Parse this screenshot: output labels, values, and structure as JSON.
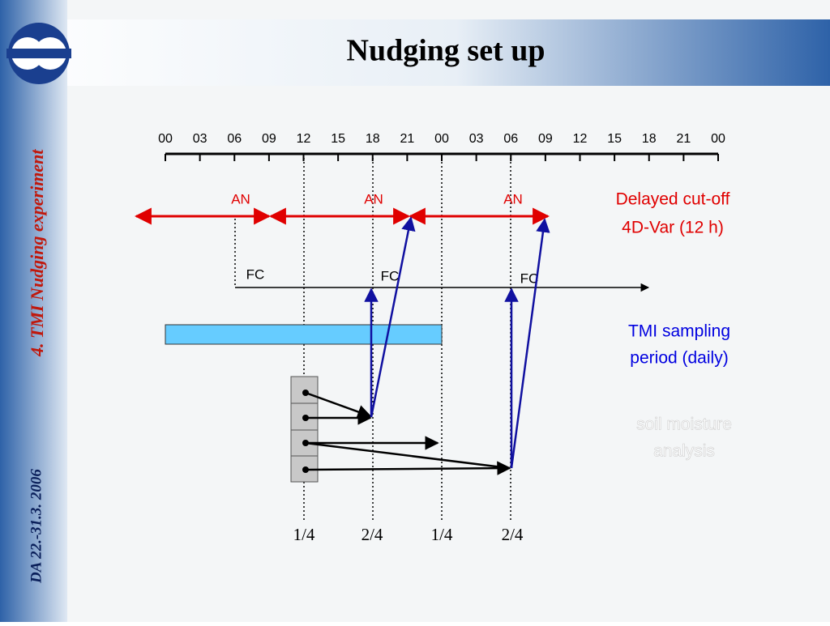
{
  "header": {
    "title": "Nudging set up"
  },
  "sidebar": {
    "section": "4. TMI Nudging experiment",
    "date": "DA 22.-31.3. 2006"
  },
  "timeline": {
    "labels": [
      "00",
      "03",
      "06",
      "09",
      "12",
      "15",
      "18",
      "21",
      "00",
      "03",
      "06",
      "09",
      "12",
      "15",
      "18",
      "21",
      "00"
    ]
  },
  "analysis": {
    "labels": [
      "AN",
      "AN",
      "AN"
    ],
    "note": [
      "Delayed cut-off",
      "4D-Var (12 h)"
    ]
  },
  "forecast": {
    "labels": [
      "FC",
      "FC",
      "FC"
    ]
  },
  "tmi": {
    "note": [
      "TMI sampling",
      "period (daily)"
    ]
  },
  "soil": {
    "note": [
      "soil moisture",
      "analysis"
    ]
  },
  "fractions": [
    "1/4",
    "2/4",
    "1/4",
    "2/4"
  ]
}
